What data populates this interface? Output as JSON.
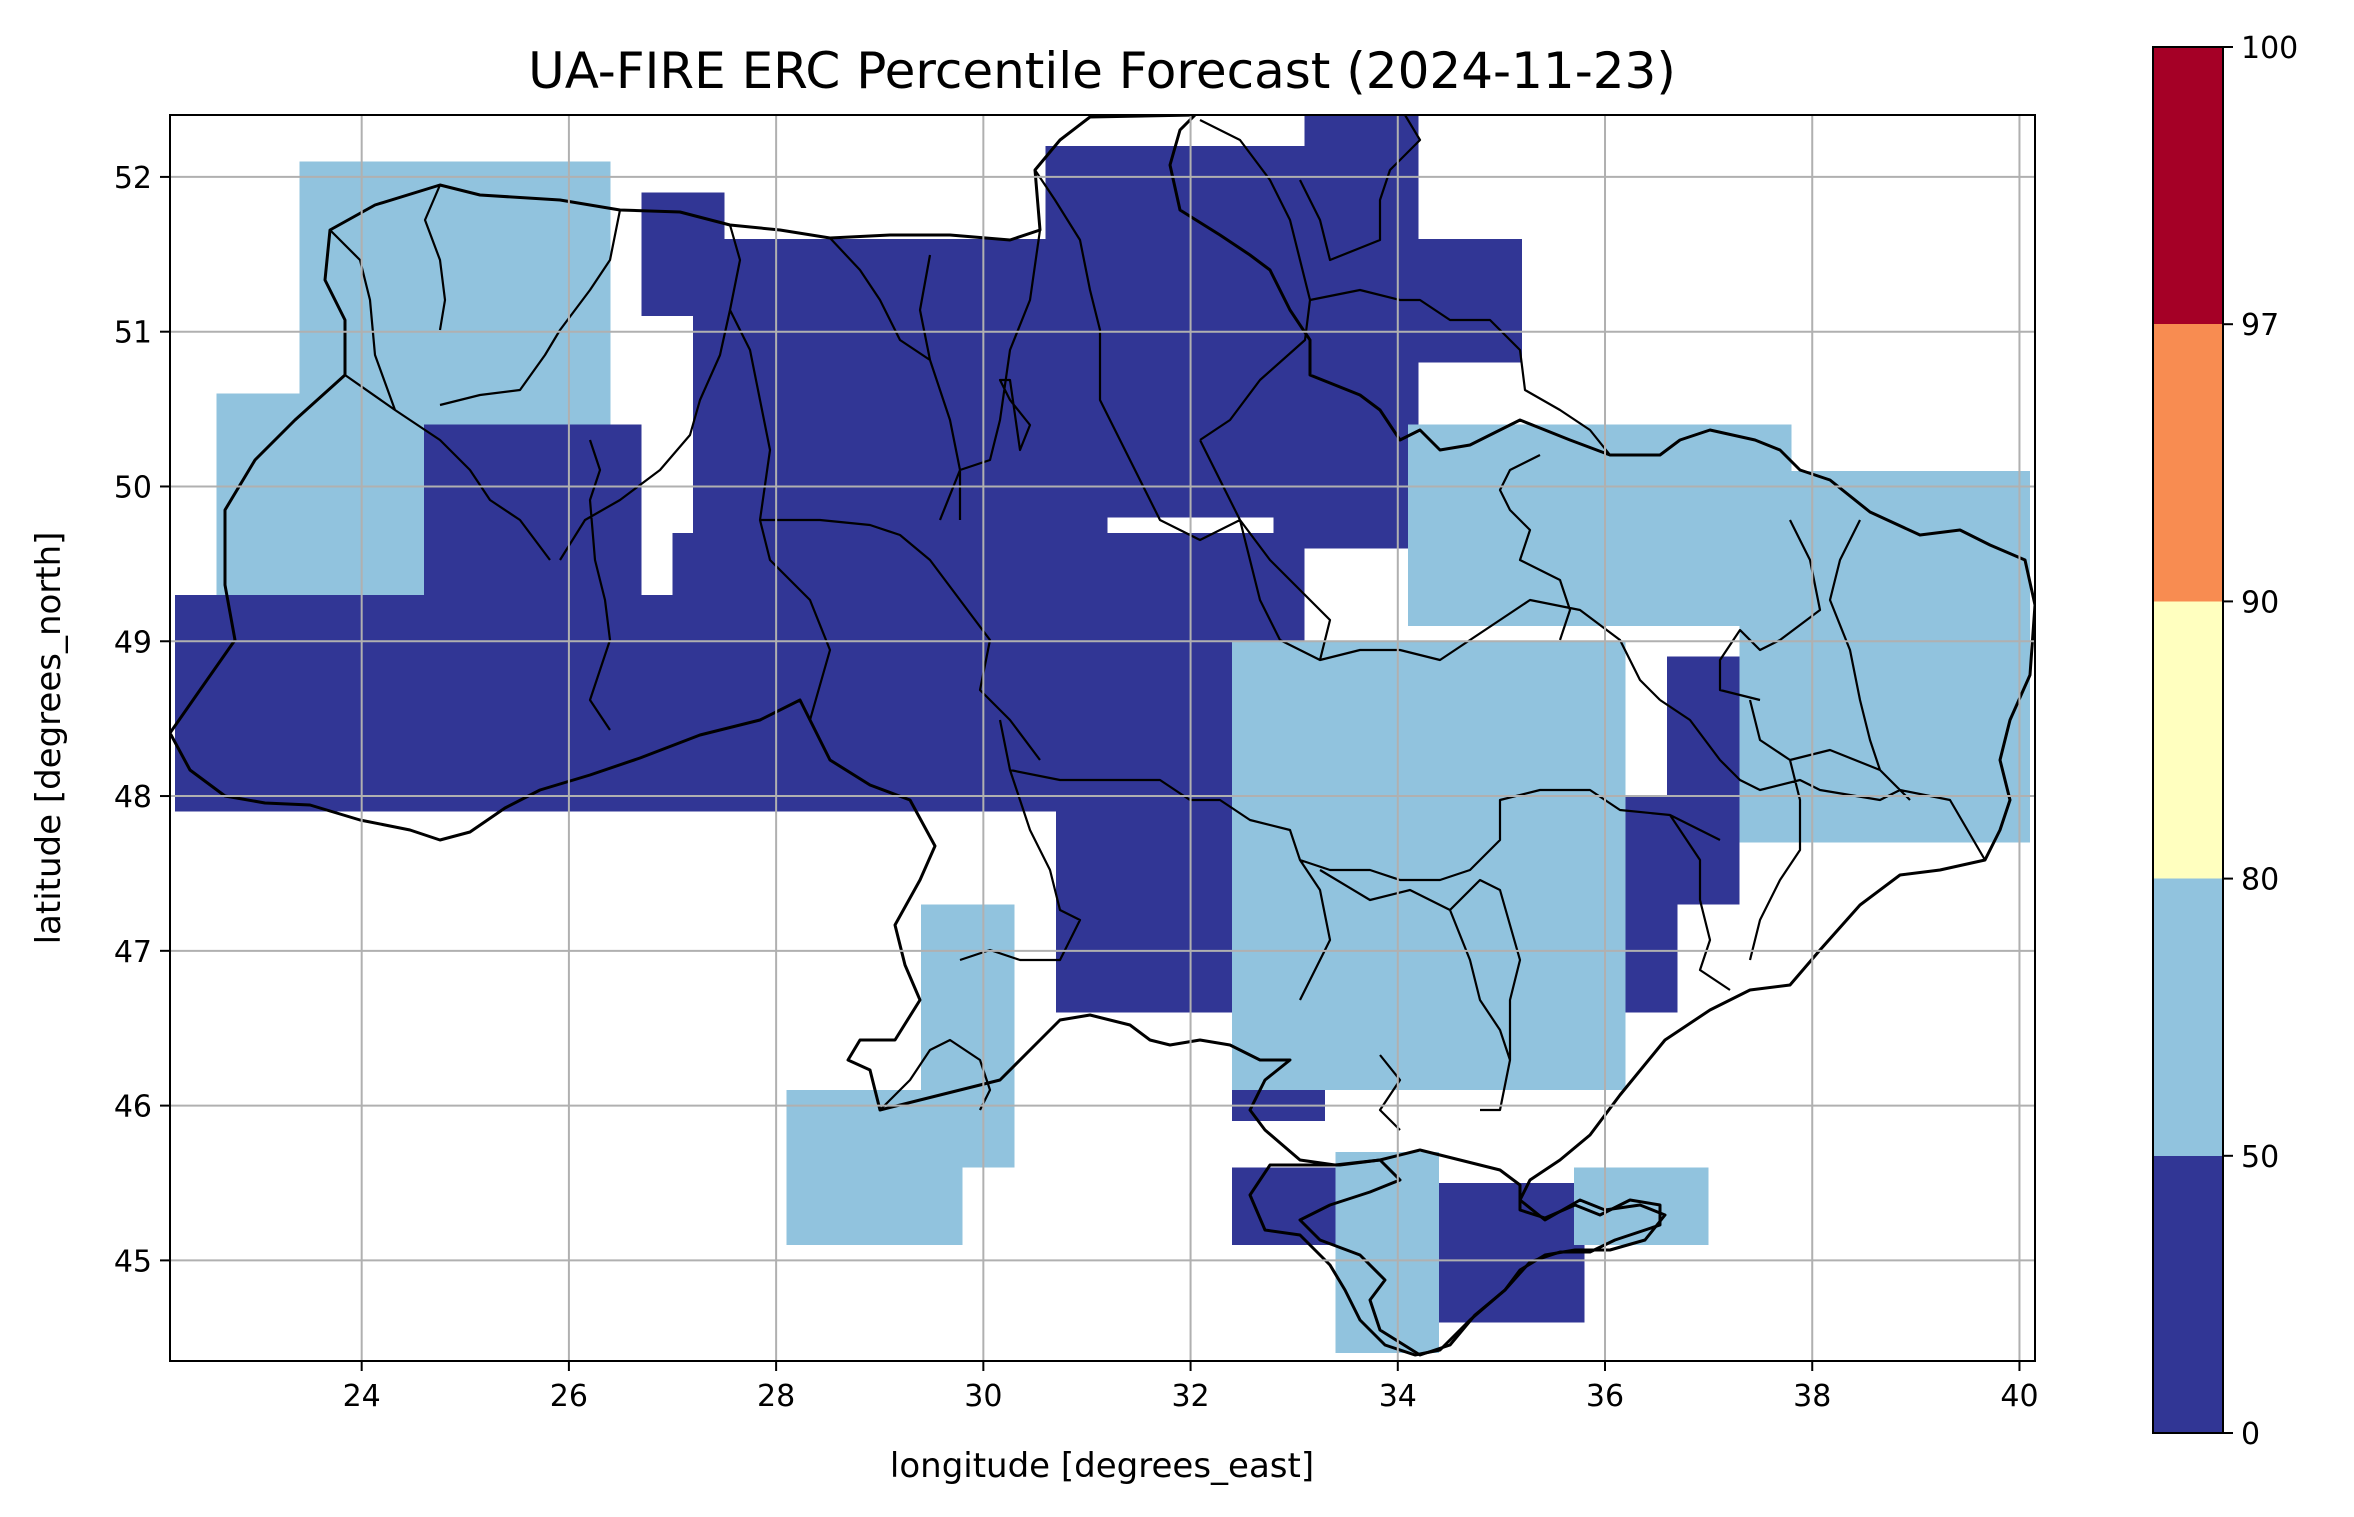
{
  "title": "UA-FIRE ERC Percentile Forecast (2024-11-23)",
  "chart_data": {
    "type": "heatmap",
    "title": "UA-FIRE ERC Percentile Forecast (2024-11-23)",
    "xlabel": "longitude [degrees_east]",
    "ylabel": "latitude [degrees_north]",
    "xlim": [
      22.15,
      40.15
    ],
    "ylim": [
      44.35,
      52.4
    ],
    "x_ticks": [
      24,
      26,
      28,
      30,
      32,
      34,
      36,
      38,
      40
    ],
    "y_ticks": [
      45,
      46,
      47,
      48,
      49,
      50,
      51,
      52
    ],
    "grid": true,
    "colorbar": {
      "boundaries": [
        0,
        50,
        80,
        90,
        97,
        100
      ],
      "tick_labels": [
        "0",
        "50",
        "80",
        "90",
        "97",
        "100"
      ],
      "colors": [
        "#313695",
        "#91c3de",
        "#ffffbf",
        "#f88c51",
        "#a50026"
      ]
    },
    "grid_cell_deg": 0.25,
    "value_classes": [
      {
        "class": 0,
        "range": "0-50",
        "color": "#313695"
      },
      {
        "class": 1,
        "range": "50-80",
        "color": "#91c3de"
      }
    ],
    "regions": [
      {
        "class": 1,
        "lon": [
          23.4,
          26.4
        ],
        "lat": [
          49.3,
          52.1
        ]
      },
      {
        "class": 1,
        "lon": [
          22.6,
          24.4
        ],
        "lat": [
          49.3,
          50.6
        ]
      },
      {
        "class": 0,
        "lon": [
          26.7,
          27.5
        ],
        "lat": [
          51.1,
          51.9
        ]
      },
      {
        "class": 0,
        "lon": [
          27.2,
          31.2
        ],
        "lat": [
          49.6,
          51.6
        ]
      },
      {
        "class": 0,
        "lon": [
          30.6,
          33.2
        ],
        "lat": [
          49.8,
          52.2
        ]
      },
      {
        "class": 0,
        "lon": [
          33.1,
          34.2
        ],
        "lat": [
          50.1,
          52.4
        ]
      },
      {
        "class": 0,
        "lon": [
          34.1,
          35.2
        ],
        "lat": [
          50.8,
          51.6
        ]
      },
      {
        "class": 0,
        "lon": [
          32.8,
          34.1
        ],
        "lat": [
          49.6,
          50.7
        ]
      },
      {
        "class": 0,
        "lon": [
          22.2,
          27.3
        ],
        "lat": [
          47.9,
          49.3
        ]
      },
      {
        "class": 0,
        "lon": [
          24.6,
          26.7
        ],
        "lat": [
          49.2,
          50.4
        ]
      },
      {
        "class": 0,
        "lon": [
          27.0,
          33.1
        ],
        "lat": [
          47.9,
          49.7
        ]
      },
      {
        "class": 0,
        "lon": [
          30.7,
          32.5
        ],
        "lat": [
          46.6,
          48.0
        ]
      },
      {
        "class": 0,
        "lon": [
          32.4,
          33.3
        ],
        "lat": [
          45.9,
          46.6
        ]
      },
      {
        "class": 0,
        "lon": [
          32.4,
          33.5
        ],
        "lat": [
          45.1,
          45.6
        ]
      },
      {
        "class": 0,
        "lon": [
          35.2,
          36.7
        ],
        "lat": [
          46.6,
          48.0
        ]
      },
      {
        "class": 0,
        "lon": [
          36.6,
          37.3
        ],
        "lat": [
          47.3,
          48.9
        ]
      },
      {
        "class": 0,
        "lon": [
          34.2,
          35.8
        ],
        "lat": [
          44.6,
          45.5
        ]
      },
      {
        "class": 0,
        "lon": [
          33.3,
          33.8
        ],
        "lat": [
          46.6,
          47.1
        ]
      },
      {
        "class": 1,
        "lon": [
          32.4,
          36.2
        ],
        "lat": [
          46.1,
          49.0
        ]
      },
      {
        "class": 1,
        "lon": [
          34.1,
          37.8
        ],
        "lat": [
          49.1,
          50.4
        ]
      },
      {
        "class": 1,
        "lon": [
          37.3,
          40.1
        ],
        "lat": [
          47.7,
          50.1
        ]
      },
      {
        "class": 1,
        "lon": [
          29.4,
          30.3
        ],
        "lat": [
          45.6,
          47.3
        ]
      },
      {
        "class": 1,
        "lon": [
          28.1,
          29.8
        ],
        "lat": [
          45.1,
          46.1
        ]
      },
      {
        "class": 1,
        "lon": [
          33.4,
          34.4
        ],
        "lat": [
          44.4,
          45.7
        ]
      },
      {
        "class": 1,
        "lon": [
          35.7,
          37.0
        ],
        "lat": [
          45.1,
          45.6
        ]
      }
    ]
  }
}
